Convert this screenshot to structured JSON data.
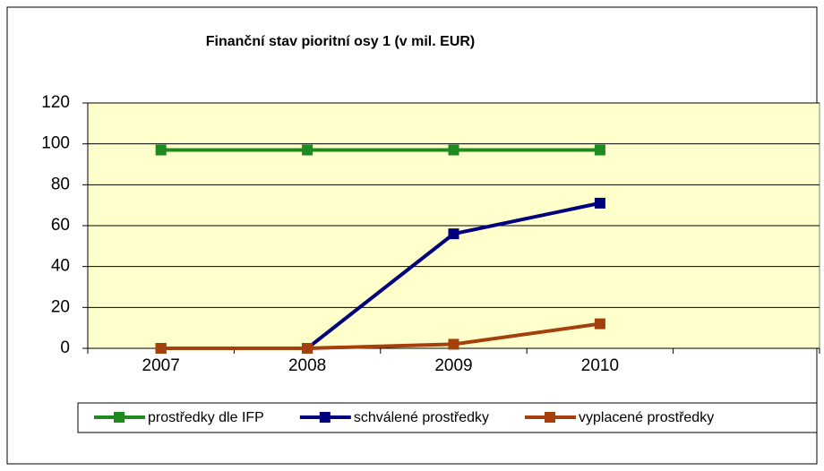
{
  "chart_data": {
    "type": "line",
    "title": "Finanční stav pioritní osy 1 (v mil. EUR)",
    "categories": [
      "2007",
      "2008",
      "2009",
      "2010",
      null
    ],
    "series": [
      {
        "name": "prostředky dle IFP",
        "color": "#1f8a1f",
        "values": [
          97,
          97,
          97,
          97,
          null
        ]
      },
      {
        "name": "schválené prostředky",
        "color": "#00007f",
        "values": [
          0,
          0,
          56,
          71,
          null
        ]
      },
      {
        "name": "vyplacené prostředky",
        "color": "#a5400c",
        "values": [
          0,
          0,
          2,
          12,
          null
        ]
      }
    ],
    "ylim": [
      0,
      120
    ],
    "yticks": [
      0,
      20,
      40,
      60,
      80,
      100,
      120
    ],
    "grid": true,
    "plot_background": "#ffffcc",
    "legend": "bottom"
  }
}
